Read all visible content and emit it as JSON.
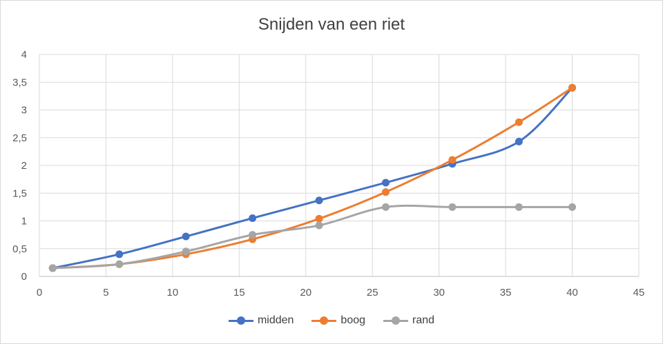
{
  "chart_data": {
    "type": "line",
    "title": "Snijden van een riet",
    "xlabel": "",
    "ylabel": "",
    "xlim": [
      0,
      45
    ],
    "ylim": [
      0,
      4
    ],
    "x_ticks": [
      "0",
      "5",
      "10",
      "15",
      "20",
      "25",
      "30",
      "35",
      "40",
      "45"
    ],
    "y_ticks": [
      "0",
      "0,5",
      "1",
      "1,5",
      "2",
      "2,5",
      "3",
      "3,5",
      "4"
    ],
    "grid": true,
    "legend_position": "bottom",
    "x": [
      1,
      6,
      11,
      16,
      21,
      26,
      31,
      36,
      40
    ],
    "series": [
      {
        "name": "midden",
        "color": "#4472c4",
        "values": [
          0.15,
          0.4,
          0.72,
          1.05,
          1.37,
          1.69,
          2.03,
          2.43,
          3.4
        ]
      },
      {
        "name": "boog",
        "color": "#ed7d31",
        "values": [
          0.15,
          0.22,
          0.4,
          0.67,
          1.04,
          1.52,
          2.1,
          2.78,
          3.4
        ]
      },
      {
        "name": "rand",
        "color": "#a5a5a5",
        "values": [
          0.15,
          0.22,
          0.45,
          0.75,
          0.92,
          1.25,
          1.25,
          1.25,
          1.25
        ]
      }
    ]
  }
}
